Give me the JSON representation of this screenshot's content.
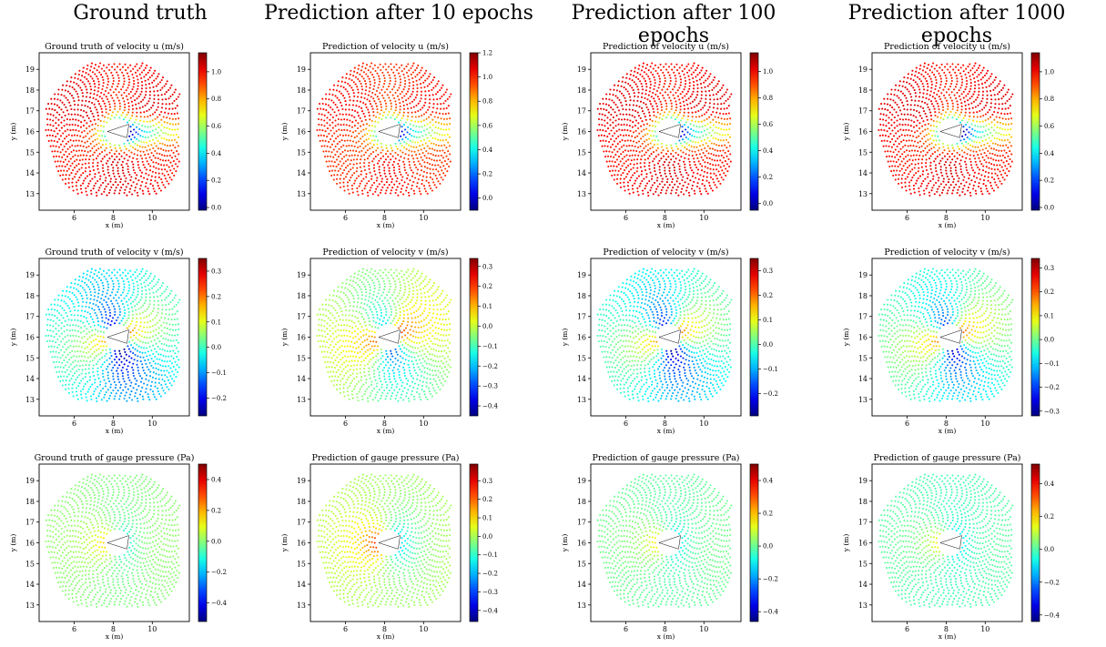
{
  "column_titles": [
    "Ground truth",
    "Prediction after 10 epochs",
    "Prediction after 100 epochs",
    "Prediction after 1000 epochs"
  ],
  "chart_data": [
    {
      "type": "scatter",
      "field": "u",
      "title": "Ground truth of velocity u (m/s)",
      "xlabel": "x (m)",
      "ylabel": "y (m)",
      "xlim": [
        4.2,
        11.9
      ],
      "ylim": [
        12.2,
        19.8
      ],
      "xticks": [
        6,
        8,
        10
      ],
      "yticks": [
        13,
        14,
        15,
        16,
        17,
        18,
        19
      ],
      "colorbar": {
        "min": -0.02,
        "max": 1.14,
        "ticks": [
          0.0,
          0.2,
          0.4,
          0.6,
          0.8,
          1.0
        ]
      }
    },
    {
      "type": "scatter",
      "field": "u",
      "title": "Prediction of velocity u (m/s)",
      "xlabel": "x (m)",
      "ylabel": "y (m)",
      "xlim": [
        4.2,
        11.9
      ],
      "ylim": [
        12.2,
        19.8
      ],
      "xticks": [
        6,
        8,
        10
      ],
      "yticks": [
        13,
        14,
        15,
        16,
        17,
        18,
        19
      ],
      "colorbar": {
        "min": -0.1,
        "max": 1.2,
        "ticks": [
          0.0,
          0.2,
          0.4,
          0.6,
          0.8,
          1.0,
          1.2
        ]
      }
    },
    {
      "type": "scatter",
      "field": "u",
      "title": "Prediction of velocity u (m/s)",
      "xlabel": "x (m)",
      "ylabel": "y (m)",
      "xlim": [
        4.2,
        11.9
      ],
      "ylim": [
        12.2,
        19.8
      ],
      "xticks": [
        6,
        8,
        10
      ],
      "yticks": [
        13,
        14,
        15,
        16,
        17,
        18,
        19
      ],
      "colorbar": {
        "min": -0.05,
        "max": 1.14,
        "ticks": [
          0.0,
          0.2,
          0.4,
          0.6,
          0.8,
          1.0
        ]
      }
    },
    {
      "type": "scatter",
      "field": "u",
      "title": "Prediction of velocity u (m/s)",
      "xlabel": "x (m)",
      "ylabel": "y (m)",
      "xlim": [
        4.2,
        11.9
      ],
      "ylim": [
        12.2,
        19.8
      ],
      "xticks": [
        6,
        8,
        10
      ],
      "yticks": [
        13,
        14,
        15,
        16,
        17,
        18,
        19
      ],
      "colorbar": {
        "min": -0.02,
        "max": 1.14,
        "ticks": [
          0.0,
          0.2,
          0.4,
          0.6,
          0.8,
          1.0
        ]
      }
    },
    {
      "type": "scatter",
      "field": "v",
      "title": "Ground truth of velocity v (m/s)",
      "xlabel": "x (m)",
      "ylabel": "y (m)",
      "xlim": [
        4.2,
        11.9
      ],
      "ylim": [
        12.2,
        19.8
      ],
      "xticks": [
        6,
        8,
        10
      ],
      "yticks": [
        13,
        14,
        15,
        16,
        17,
        18,
        19
      ],
      "colorbar": {
        "min": -0.27,
        "max": 0.35,
        "ticks": [
          -0.2,
          -0.1,
          0.0,
          0.1,
          0.2,
          0.3
        ]
      }
    },
    {
      "type": "scatter",
      "field": "v",
      "title": "Prediction of velocity v (m/s)",
      "xlabel": "x (m)",
      "ylabel": "y (m)",
      "xlim": [
        4.2,
        11.9
      ],
      "ylim": [
        12.2,
        19.8
      ],
      "xticks": [
        6,
        8,
        10
      ],
      "yticks": [
        13,
        14,
        15,
        16,
        17,
        18,
        19
      ],
      "colorbar": {
        "min": -0.45,
        "max": 0.34,
        "ticks": [
          -0.4,
          -0.3,
          -0.2,
          -0.1,
          0.0,
          0.1,
          0.2,
          0.3
        ]
      }
    },
    {
      "type": "scatter",
      "field": "v",
      "title": "Prediction of velocity v (m/s)",
      "xlabel": "x (m)",
      "ylabel": "y (m)",
      "xlim": [
        4.2,
        11.9
      ],
      "ylim": [
        12.2,
        19.8
      ],
      "xticks": [
        6,
        8,
        10
      ],
      "yticks": [
        13,
        14,
        15,
        16,
        17,
        18,
        19
      ],
      "colorbar": {
        "min": -0.29,
        "max": 0.35,
        "ticks": [
          -0.2,
          -0.1,
          0.0,
          0.1,
          0.2,
          0.3
        ]
      }
    },
    {
      "type": "scatter",
      "field": "v",
      "title": "Prediction of velocity v (m/s)",
      "xlabel": "x (m)",
      "ylabel": "y (m)",
      "xlim": [
        4.2,
        11.9
      ],
      "ylim": [
        12.2,
        19.8
      ],
      "xticks": [
        6,
        8,
        10
      ],
      "yticks": [
        13,
        14,
        15,
        16,
        17,
        18,
        19
      ],
      "colorbar": {
        "min": -0.32,
        "max": 0.34,
        "ticks": [
          -0.3,
          -0.2,
          -0.1,
          0.0,
          0.1,
          0.2,
          0.3
        ]
      }
    },
    {
      "type": "scatter",
      "field": "p",
      "title": "Ground truth of gauge pressure (Pa)",
      "xlabel": "x (m)",
      "ylabel": "y (m)",
      "xlim": [
        4.2,
        11.9
      ],
      "ylim": [
        12.2,
        19.8
      ],
      "xticks": [
        6,
        8,
        10
      ],
      "yticks": [
        13,
        14,
        15,
        16,
        17,
        18,
        19
      ],
      "colorbar": {
        "min": -0.52,
        "max": 0.5,
        "ticks": [
          -0.4,
          -0.2,
          0.0,
          0.2,
          0.4
        ]
      }
    },
    {
      "type": "scatter",
      "field": "p",
      "title": "Prediction of gauge pressure (Pa)",
      "xlabel": "x (m)",
      "ylabel": "y (m)",
      "xlim": [
        4.2,
        11.9
      ],
      "ylim": [
        12.2,
        19.8
      ],
      "xticks": [
        6,
        8,
        10
      ],
      "yticks": [
        13,
        14,
        15,
        16,
        17,
        18,
        19
      ],
      "colorbar": {
        "min": -0.46,
        "max": 0.39,
        "ticks": [
          -0.4,
          -0.3,
          -0.2,
          -0.1,
          0.0,
          0.1,
          0.2,
          0.3
        ]
      }
    },
    {
      "type": "scatter",
      "field": "p",
      "title": "Prediction of gauge pressure (Pa)",
      "xlabel": "x (m)",
      "ylabel": "y (m)",
      "xlim": [
        4.2,
        11.9
      ],
      "ylim": [
        12.2,
        19.8
      ],
      "xticks": [
        6,
        8,
        10
      ],
      "yticks": [
        13,
        14,
        15,
        16,
        17,
        18,
        19
      ],
      "colorbar": {
        "min": -0.46,
        "max": 0.5,
        "ticks": [
          -0.4,
          -0.2,
          0.0,
          0.2,
          0.4
        ]
      }
    },
    {
      "type": "scatter",
      "field": "p",
      "title": "Prediction of gauge pressure (Pa)",
      "xlabel": "x (m)",
      "ylabel": "y (m)",
      "xlim": [
        4.2,
        11.9
      ],
      "ylim": [
        12.2,
        19.8
      ],
      "xticks": [
        6,
        8,
        10
      ],
      "yticks": [
        13,
        14,
        15,
        16,
        17,
        18,
        19
      ],
      "colorbar": {
        "min": -0.44,
        "max": 0.52,
        "ticks": [
          -0.4,
          -0.2,
          0.0,
          0.2,
          0.4
        ]
      }
    }
  ]
}
